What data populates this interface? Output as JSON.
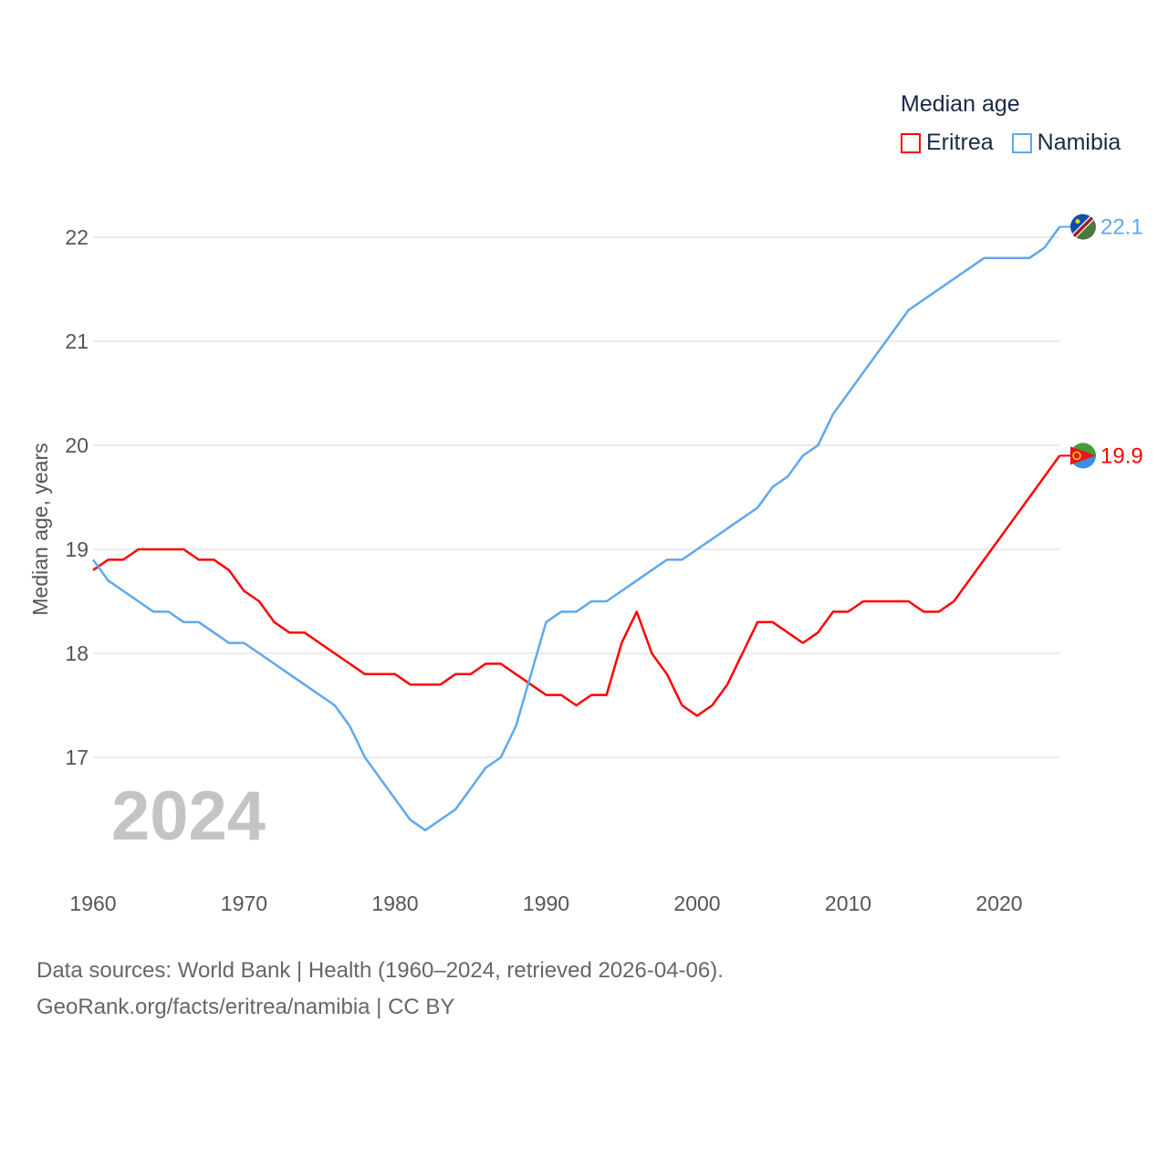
{
  "chart_data": {
    "type": "line",
    "title": "",
    "xlabel": "",
    "ylabel": "Median age, years",
    "xlim": [
      1960,
      2024
    ],
    "ylim": [
      16.2,
      22.3
    ],
    "yticks": [
      17,
      18,
      19,
      20,
      21,
      22
    ],
    "xticks": [
      1960,
      1970,
      1980,
      1990,
      2000,
      2010,
      2020
    ],
    "grid": true,
    "legend_title": "Median age",
    "legend_position": "top-right",
    "year_watermark": "2024",
    "x": [
      1960,
      1961,
      1962,
      1963,
      1964,
      1965,
      1966,
      1967,
      1968,
      1969,
      1970,
      1971,
      1972,
      1973,
      1974,
      1975,
      1976,
      1977,
      1978,
      1979,
      1980,
      1981,
      1982,
      1983,
      1984,
      1985,
      1986,
      1987,
      1988,
      1989,
      1990,
      1991,
      1992,
      1993,
      1994,
      1995,
      1996,
      1997,
      1998,
      1999,
      2000,
      2001,
      2002,
      2003,
      2004,
      2005,
      2006,
      2007,
      2008,
      2009,
      2010,
      2011,
      2012,
      2013,
      2014,
      2015,
      2016,
      2017,
      2018,
      2019,
      2020,
      2021,
      2022,
      2023,
      2024
    ],
    "series": [
      {
        "name": "Eritrea",
        "color": "#ff0000",
        "end_label": "19.9",
        "values": [
          18.8,
          18.9,
          18.9,
          19.0,
          19.0,
          19.0,
          19.0,
          18.9,
          18.9,
          18.8,
          18.6,
          18.5,
          18.3,
          18.2,
          18.2,
          18.1,
          18.0,
          17.9,
          17.8,
          17.8,
          17.8,
          17.7,
          17.7,
          17.7,
          17.8,
          17.8,
          17.9,
          17.9,
          17.8,
          17.7,
          17.6,
          17.6,
          17.5,
          17.6,
          17.6,
          18.1,
          18.4,
          18.0,
          17.8,
          17.5,
          17.4,
          17.5,
          17.7,
          18.0,
          18.3,
          18.3,
          18.2,
          18.1,
          18.2,
          18.4,
          18.4,
          18.5,
          18.5,
          18.5,
          18.5,
          18.4,
          18.4,
          18.5,
          18.7,
          18.9,
          19.1,
          19.3,
          19.5,
          19.7,
          19.9
        ]
      },
      {
        "name": "Namibia",
        "color": "#5ea8ee",
        "end_label": "22.1",
        "values": [
          18.9,
          18.7,
          18.6,
          18.5,
          18.4,
          18.4,
          18.3,
          18.3,
          18.2,
          18.1,
          18.1,
          18.0,
          17.9,
          17.8,
          17.7,
          17.6,
          17.5,
          17.3,
          17.0,
          16.8,
          16.6,
          16.4,
          16.3,
          16.4,
          16.5,
          16.7,
          16.9,
          17.0,
          17.3,
          17.8,
          18.3,
          18.4,
          18.4,
          18.5,
          18.5,
          18.6,
          18.7,
          18.8,
          18.9,
          18.9,
          19.0,
          19.1,
          19.2,
          19.3,
          19.4,
          19.6,
          19.7,
          19.9,
          20.0,
          20.3,
          20.5,
          20.7,
          20.9,
          21.1,
          21.3,
          21.4,
          21.5,
          21.6,
          21.7,
          21.8,
          21.8,
          21.8,
          21.8,
          21.9,
          22.1
        ]
      }
    ]
  },
  "footer": {
    "line1": "Data sources: World Bank | Health (1960–2024, retrieved 2026-04-06).",
    "line2": "GeoRank.org/facts/eritrea/namibia | CC BY"
  }
}
